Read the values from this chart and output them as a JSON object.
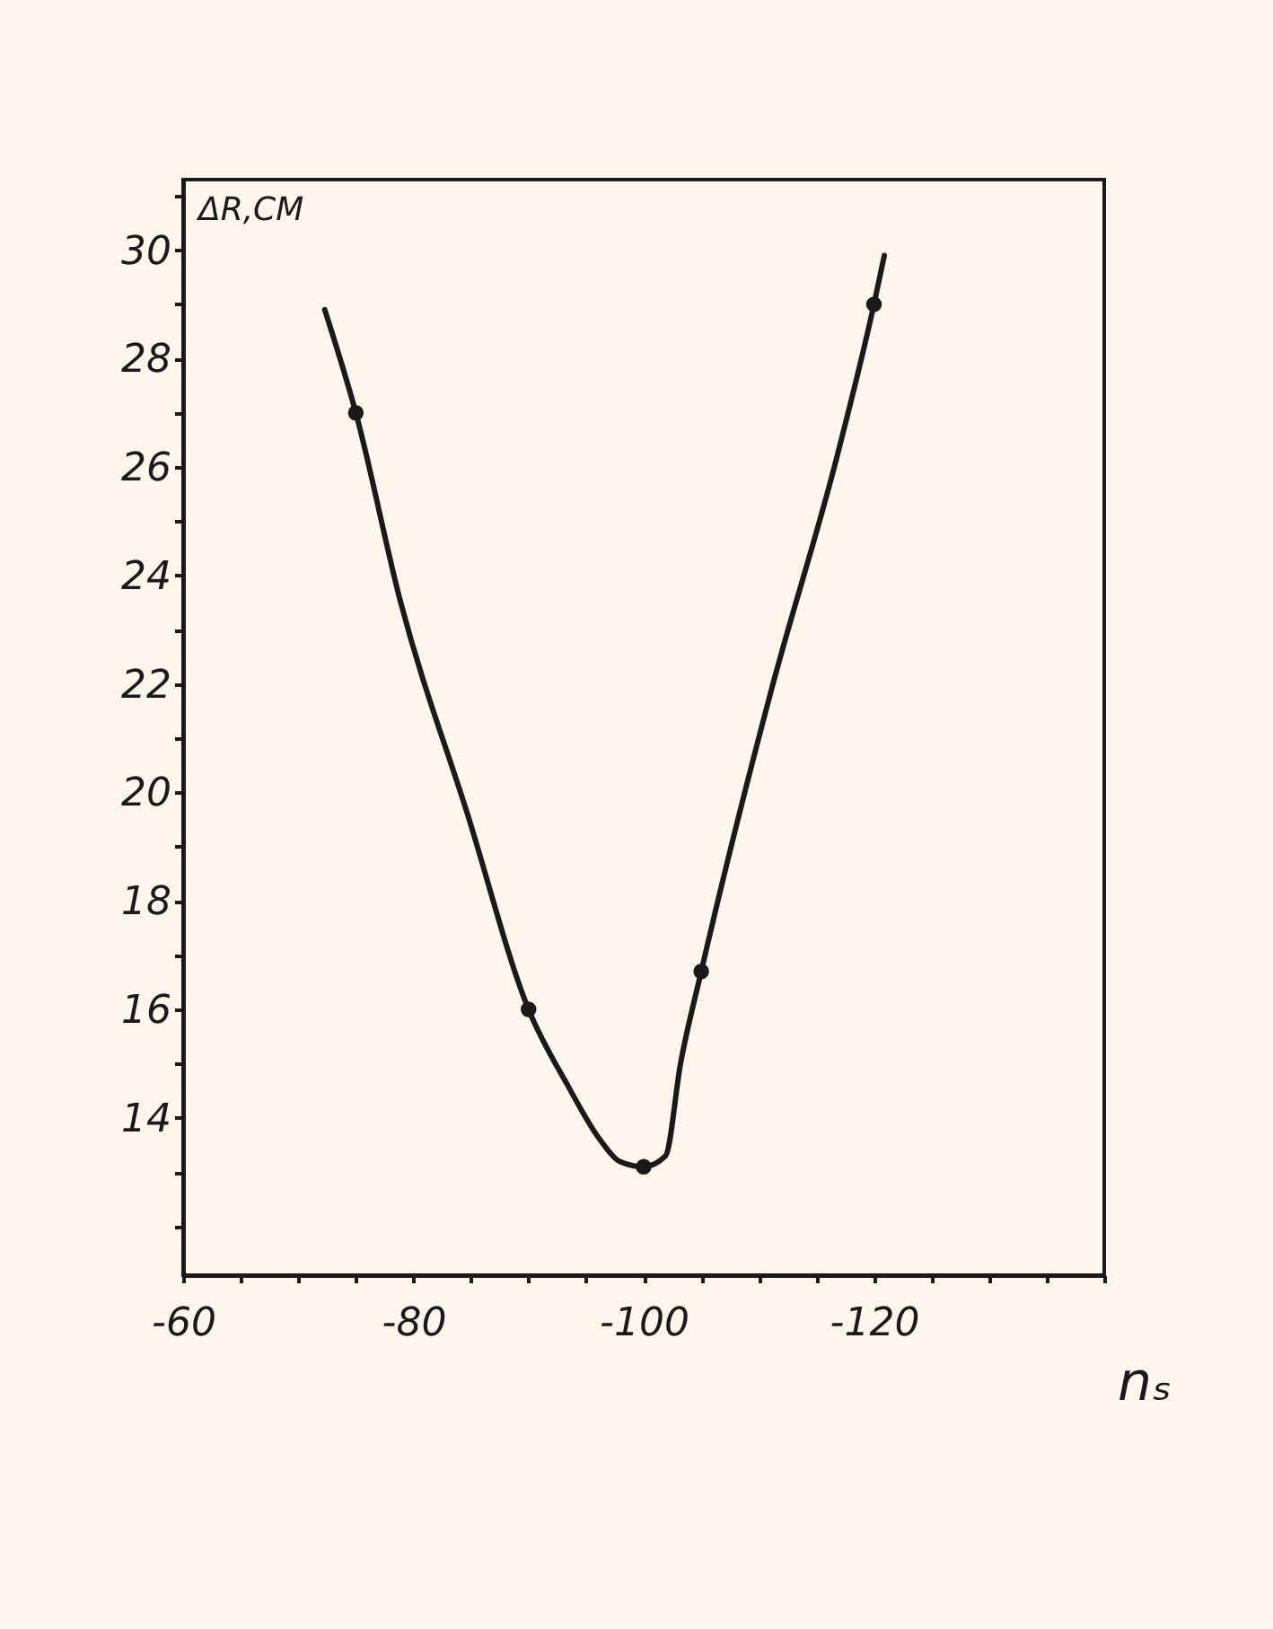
{
  "chart_data": {
    "type": "line",
    "xlabel": "nₛ",
    "ylabel": "ΔR,CM",
    "xlim": [
      -60,
      -140
    ],
    "xticks": [
      -60,
      {
        "value": -65,
        "label": null
      },
      {
        "value": -70,
        "label": null
      },
      {
        "value": -75,
        "label": null
      },
      -80,
      {
        "value": -85,
        "label": null
      },
      {
        "value": -90,
        "label": null
      },
      {
        "value": -95,
        "label": null
      },
      -100,
      {
        "value": -105,
        "label": null
      },
      {
        "value": -110,
        "label": null
      },
      {
        "value": -115,
        "label": null
      },
      -120,
      {
        "value": -125,
        "label": null
      },
      {
        "value": -130,
        "label": null
      },
      {
        "value": -135,
        "label": null
      },
      {
        "value": -140,
        "label": null
      }
    ],
    "ylim": [
      11.1,
      31.3
    ],
    "yticks": [
      {
        "value": 12,
        "label": null
      },
      {
        "value": 13,
        "label": null
      },
      14,
      {
        "value": 15,
        "label": null
      },
      16,
      {
        "value": 17,
        "label": null
      },
      18,
      {
        "value": 19,
        "label": null
      },
      20,
      {
        "value": 21,
        "label": null
      },
      22,
      {
        "value": 23,
        "label": null
      },
      24,
      {
        "value": 25,
        "label": null
      },
      26,
      {
        "value": 27,
        "label": null
      },
      28,
      {
        "value": 29,
        "label": null
      },
      30,
      {
        "value": 31,
        "label": null
      }
    ],
    "grid": false,
    "series": [
      {
        "color": "#1a1a1a",
        "marker": "none",
        "x": [
          -72.3,
          -75,
          -78.9,
          -84.7,
          -90,
          -93.4,
          -96.2,
          -97.9,
          -100,
          -101.9,
          -103.2,
          -105,
          -111.1,
          -116.8,
          -120,
          -120.9
        ],
        "values": [
          28.9,
          27,
          23.5,
          19.6,
          16,
          14.6,
          13.6,
          13.2,
          13.1,
          13.3,
          15,
          16.7,
          21.9,
          26.2,
          29,
          29.9
        ]
      },
      {
        "type": "scatter",
        "color": "#1a1a1a",
        "marker": "circle",
        "x": [
          -75,
          -90,
          -100,
          -105,
          -120
        ],
        "values": [
          27,
          16,
          13.1,
          16.7,
          29
        ]
      }
    ]
  }
}
